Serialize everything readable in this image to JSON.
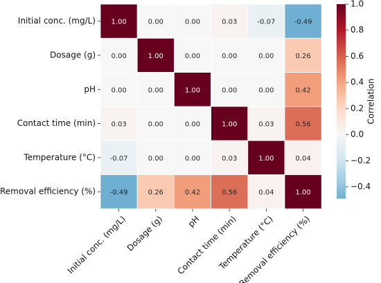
{
  "chart_data": {
    "type": "heatmap",
    "title": "",
    "variables": [
      "Initial conc. (mg/L)",
      "Dosage (g)",
      "pH",
      "Contact time (min)",
      "Temperature (°C)",
      "Removal efficiency (%)"
    ],
    "matrix": [
      [
        1.0,
        -0.0,
        0.0,
        0.03,
        -0.07,
        -0.49
      ],
      [
        -0.0,
        1.0,
        -0.0,
        0.0,
        -0.0,
        0.26
      ],
      [
        0.0,
        -0.0,
        1.0,
        0.0,
        0.0,
        0.42
      ],
      [
        0.03,
        0.0,
        0.0,
        1.0,
        0.03,
        0.56
      ],
      [
        -0.07,
        -0.0,
        0.0,
        0.03,
        1.0,
        0.04
      ],
      [
        -0.49,
        0.26,
        0.42,
        0.56,
        0.04,
        1.0
      ]
    ],
    "colorbar": {
      "label": "Correlation",
      "range": [
        -0.49,
        1.0
      ],
      "ticks": [
        -0.4,
        -0.2,
        0.0,
        0.2,
        0.4,
        0.6,
        0.8,
        1.0
      ]
    },
    "annot_format": "2 decimals"
  }
}
